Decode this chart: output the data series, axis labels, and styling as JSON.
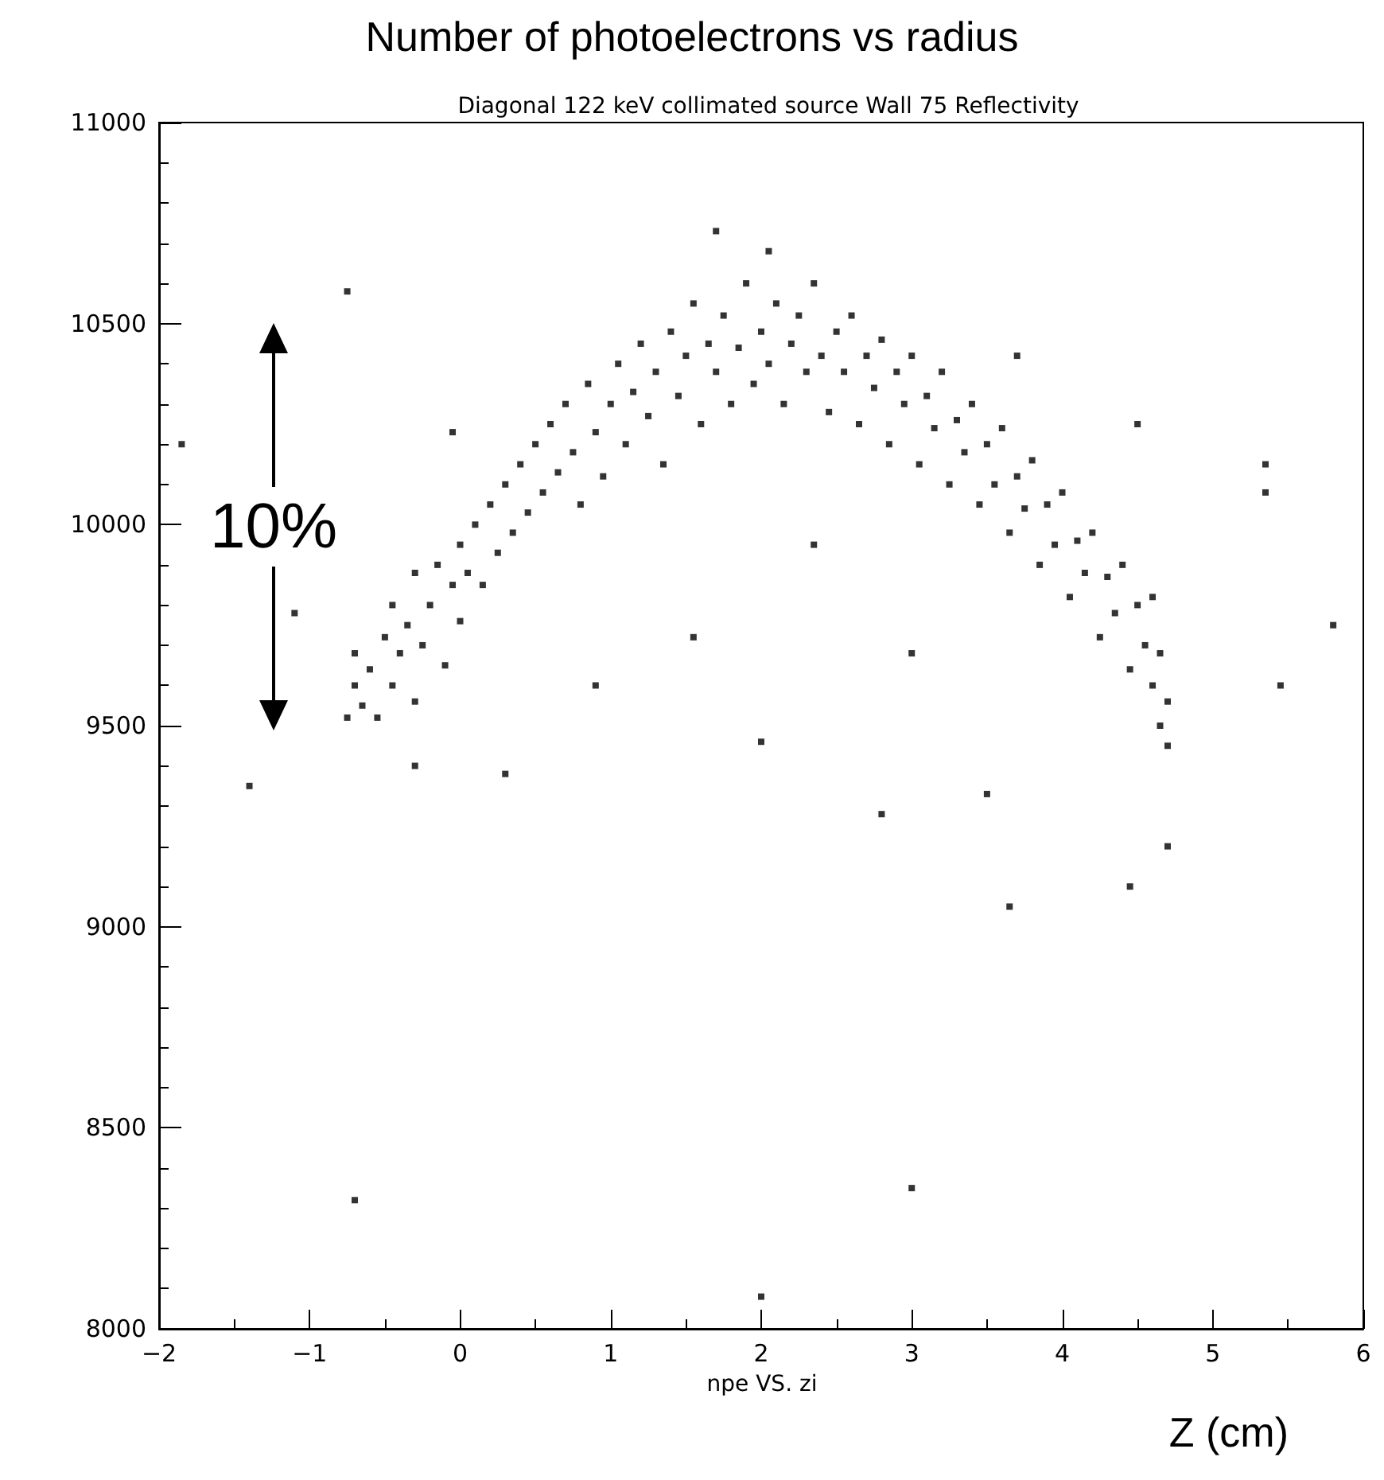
{
  "chart_data": {
    "type": "scatter",
    "title": "Number of photoelectrons vs radius",
    "subtitle": "Diagonal 122 keV collimated source Wall 75 Reflectivity",
    "xlabel": "Z (cm)",
    "annotations": [
      "npe VS. zi",
      "10%"
    ],
    "xlim": [
      -2,
      6
    ],
    "xticks": [
      -2,
      -1,
      0,
      1,
      2,
      3,
      4,
      5,
      6
    ],
    "ylim": [
      8000,
      11000
    ],
    "yticks": [
      8000,
      8500,
      9000,
      9500,
      10000,
      10500,
      11000
    ],
    "grid": false,
    "marker": "square",
    "series": [
      {
        "color": "#000000",
        "x": [
          -0.75,
          -0.7,
          -0.7,
          -0.65,
          -0.6,
          -0.55,
          -0.5,
          -0.45,
          -0.45,
          -0.4,
          -0.35,
          -0.3,
          -0.3,
          -0.25,
          -0.2,
          -0.15,
          -0.1,
          -0.05,
          0,
          0,
          0.05,
          0.1,
          0.15,
          0.2,
          0.25,
          0.3,
          0.35,
          0.4,
          0.45,
          0.5,
          0.55,
          0.6,
          0.65,
          0.7,
          0.75,
          0.8,
          0.85,
          0.9,
          0.95,
          1.0,
          1.05,
          1.1,
          1.15,
          1.2,
          1.25,
          1.3,
          1.35,
          1.4,
          1.45,
          1.5,
          1.55,
          1.6,
          1.65,
          1.7,
          1.75,
          1.8,
          1.85,
          1.9,
          1.95,
          2.0,
          2.05,
          2.1,
          2.15,
          2.2,
          2.25,
          2.3,
          2.35,
          2.4,
          2.45,
          2.5,
          2.55,
          2.6,
          2.65,
          2.7,
          2.75,
          2.8,
          2.85,
          2.9,
          2.95,
          3.0,
          3.05,
          3.1,
          3.15,
          3.2,
          3.25,
          3.3,
          3.35,
          3.4,
          3.45,
          3.5,
          3.55,
          3.6,
          3.65,
          3.7,
          3.75,
          3.8,
          3.85,
          3.9,
          3.95,
          4.0,
          4.05,
          4.1,
          4.15,
          4.2,
          4.25,
          4.3,
          4.35,
          4.4,
          4.45,
          4.5,
          4.55,
          4.6,
          4.6,
          4.65,
          4.65,
          4.7,
          4.7,
          -1.85,
          -1.1,
          -1.4,
          -0.75,
          -0.7,
          -0.3,
          0.3,
          -0.05,
          0.9,
          1.55,
          2.0,
          2.0,
          2.35,
          2.8,
          3.0,
          3.0,
          3.5,
          3.65,
          4.45,
          4.5,
          4.7,
          5.35,
          5.35,
          5.45,
          5.8,
          1.7,
          2.05,
          3.7
        ],
        "values": [
          9520,
          9600,
          9680,
          9550,
          9640,
          9520,
          9720,
          9600,
          9800,
          9680,
          9750,
          9560,
          9880,
          9700,
          9800,
          9900,
          9650,
          9850,
          9950,
          9760,
          9880,
          10000,
          9850,
          10050,
          9930,
          10100,
          9980,
          10150,
          10030,
          10200,
          10080,
          10250,
          10130,
          10300,
          10180,
          10050,
          10350,
          10230,
          10120,
          10300,
          10400,
          10200,
          10330,
          10450,
          10270,
          10380,
          10150,
          10480,
          10320,
          10420,
          10550,
          10250,
          10450,
          10380,
          10520,
          10300,
          10440,
          10600,
          10350,
          10480,
          10400,
          10550,
          10300,
          10450,
          10520,
          10380,
          10600,
          10420,
          10280,
          10480,
          10380,
          10520,
          10250,
          10420,
          10340,
          10460,
          10200,
          10380,
          10300,
          10420,
          10150,
          10320,
          10240,
          10380,
          10100,
          10260,
          10180,
          10300,
          10050,
          10200,
          10100,
          10240,
          9980,
          10120,
          10040,
          10160,
          9900,
          10050,
          9950,
          10080,
          9820,
          9960,
          9880,
          9980,
          9720,
          9870,
          9780,
          9900,
          9640,
          9800,
          9700,
          9600,
          9820,
          9500,
          9680,
          9560,
          9450,
          10200,
          9780,
          9350,
          10580,
          8320,
          9400,
          9380,
          10230,
          9600,
          9720,
          8080,
          9460,
          9950,
          9280,
          8350,
          9680,
          9330,
          9050,
          9100,
          10250,
          9200,
          10080,
          10150,
          9600,
          9750,
          10730,
          10680,
          10420
        ]
      }
    ]
  }
}
